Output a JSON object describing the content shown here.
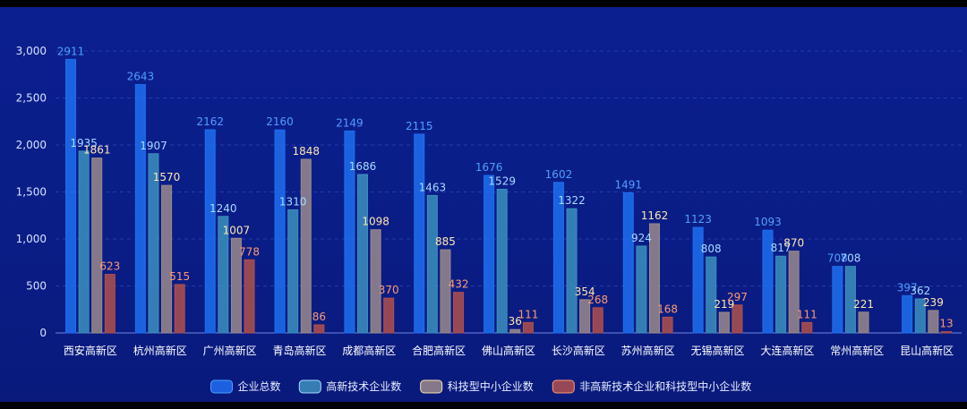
{
  "chart_data": {
    "type": "bar",
    "categories": [
      "西安高新区",
      "杭州高新区",
      "广州高新区",
      "青岛高新区",
      "成都高新区",
      "合肥高新区",
      "佛山高新区",
      "长沙高新区",
      "苏州高新区",
      "无锡高新区",
      "大连高新区",
      "常州高新区",
      "昆山高新区"
    ],
    "series": [
      {
        "name": "企业总数",
        "values": [
          2911,
          2643,
          2162,
          2160,
          2149,
          2115,
          1676,
          1602,
          1491,
          1123,
          1093,
          708,
          397
        ],
        "color": "#1e6ff0",
        "label_color": "#4ea0ff"
      },
      {
        "name": "高新技术企业数",
        "values": [
          1935,
          1907,
          1240,
          1310,
          1686,
          1463,
          1529,
          1322,
          924,
          808,
          817,
          708,
          362
        ],
        "color": "#3c8fbe",
        "label_color": "#a6dcff"
      },
      {
        "name": "科技型中小企业数",
        "values": [
          1861,
          1570,
          1007,
          1848,
          1098,
          885,
          36,
          354,
          1162,
          219,
          870,
          221,
          239
        ],
        "color": "#9a8a8c",
        "label_color": "#ffe6b0"
      },
      {
        "name": "非高新技术企业和科技型中小企业数",
        "values": [
          623,
          515,
          778,
          86,
          370,
          432,
          111,
          268,
          168,
          297,
          111,
          0,
          13
        ],
        "color": "#b0504d",
        "label_color": "#ff9a70"
      }
    ],
    "data_labels": [
      [
        "2911",
        "2643",
        "2162",
        "2160",
        "2149",
        "2115",
        "1676",
        "1602",
        "1491",
        "1123",
        "1093",
        "708",
        "397"
      ],
      [
        "1935",
        "1907",
        "1240",
        "1310",
        "1686",
        "1463",
        "1529",
        "1322",
        "924",
        "808",
        "817",
        "708",
        "362"
      ],
      [
        "1861",
        "1570",
        "1007",
        "1848",
        "1098",
        "885",
        "36",
        "354",
        "1162",
        "219",
        "870",
        "221",
        "239"
      ],
      [
        "623",
        "515",
        "778",
        "86",
        "370",
        "432",
        "111",
        "268",
        "168",
        "297",
        "111",
        "",
        "13"
      ]
    ],
    "yticks": [
      0,
      500,
      1000,
      1500,
      2000,
      2500,
      3000
    ],
    "ytick_labels": [
      "0",
      "500",
      "1,000",
      "1,500",
      "2,000",
      "2,500",
      "3,000"
    ],
    "ylim": [
      0,
      3000
    ],
    "grid": true,
    "legend_position": "bottom"
  }
}
